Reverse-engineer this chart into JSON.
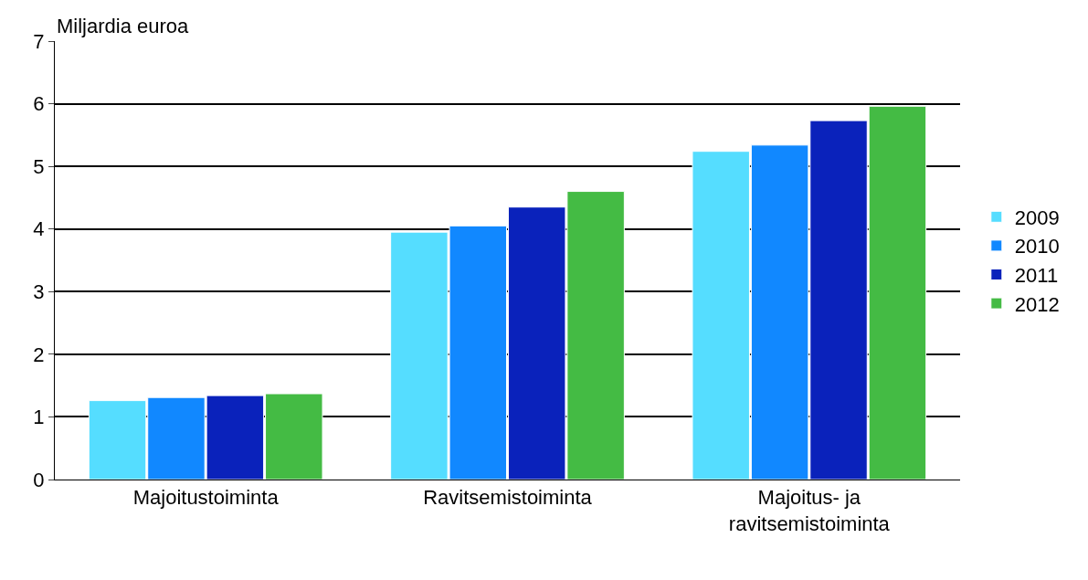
{
  "chart_data": {
    "type": "bar",
    "ylabel": "Miljardia euroa",
    "categories": [
      "Majoitustoiminta",
      "Ravitsemistoiminta",
      "Majoitus- ja\nravitsemistoiminta"
    ],
    "series": [
      {
        "name": "2009",
        "color": "#55ddff",
        "values": [
          1.26,
          3.95,
          5.24
        ]
      },
      {
        "name": "2010",
        "color": "#1188ff",
        "values": [
          1.31,
          4.05,
          5.34
        ]
      },
      {
        "name": "2011",
        "color": "#0a22bb",
        "values": [
          1.34,
          4.35,
          5.73
        ]
      },
      {
        "name": "2012",
        "color": "#44bb44",
        "values": [
          1.37,
          4.6,
          5.96
        ]
      }
    ],
    "ylim": [
      0,
      7
    ],
    "yticks": [
      0,
      1,
      2,
      3,
      4,
      5,
      6,
      7
    ],
    "grid": "y",
    "legend": "right"
  }
}
